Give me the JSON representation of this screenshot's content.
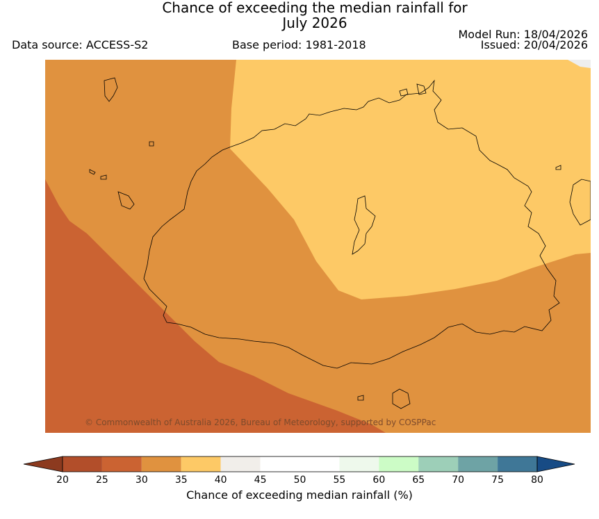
{
  "header": {
    "title_line1": "Chance of exceeding the median rainfall for",
    "title_line2": "July 2026",
    "data_source": "Data source: ACCESS-S2",
    "base_period": "Base period: 1981-2018",
    "model_run": "Model Run: 18/04/2026",
    "issued": "Issued: 20/04/2026"
  },
  "map": {
    "copyright": "© Commonwealth of Australia 2026, Bureau of Meteorology, supported by COSPPac",
    "region_colors": {
      "band_25_30": "#cb6332",
      "band_30_35": "#e0923f",
      "band_35_40": "#fdc966",
      "no_data": "#eeeeee"
    }
  },
  "colorbar": {
    "label": "Chance of exceeding median rainfall (%)",
    "ticks": [
      "20",
      "25",
      "30",
      "35",
      "40",
      "45",
      "50",
      "55",
      "60",
      "65",
      "70",
      "75",
      "80"
    ],
    "under_color": "#8c3a1f",
    "over_color": "#174b85",
    "colors": [
      "#b24e2a",
      "#cb6332",
      "#e0923f",
      "#fdc966",
      "#f1eeea",
      "#ffffff",
      "#ffffff",
      "#eef9ec",
      "#ccfcc6",
      "#9dcfb8",
      "#6ea3a5",
      "#3f7797"
    ]
  }
}
